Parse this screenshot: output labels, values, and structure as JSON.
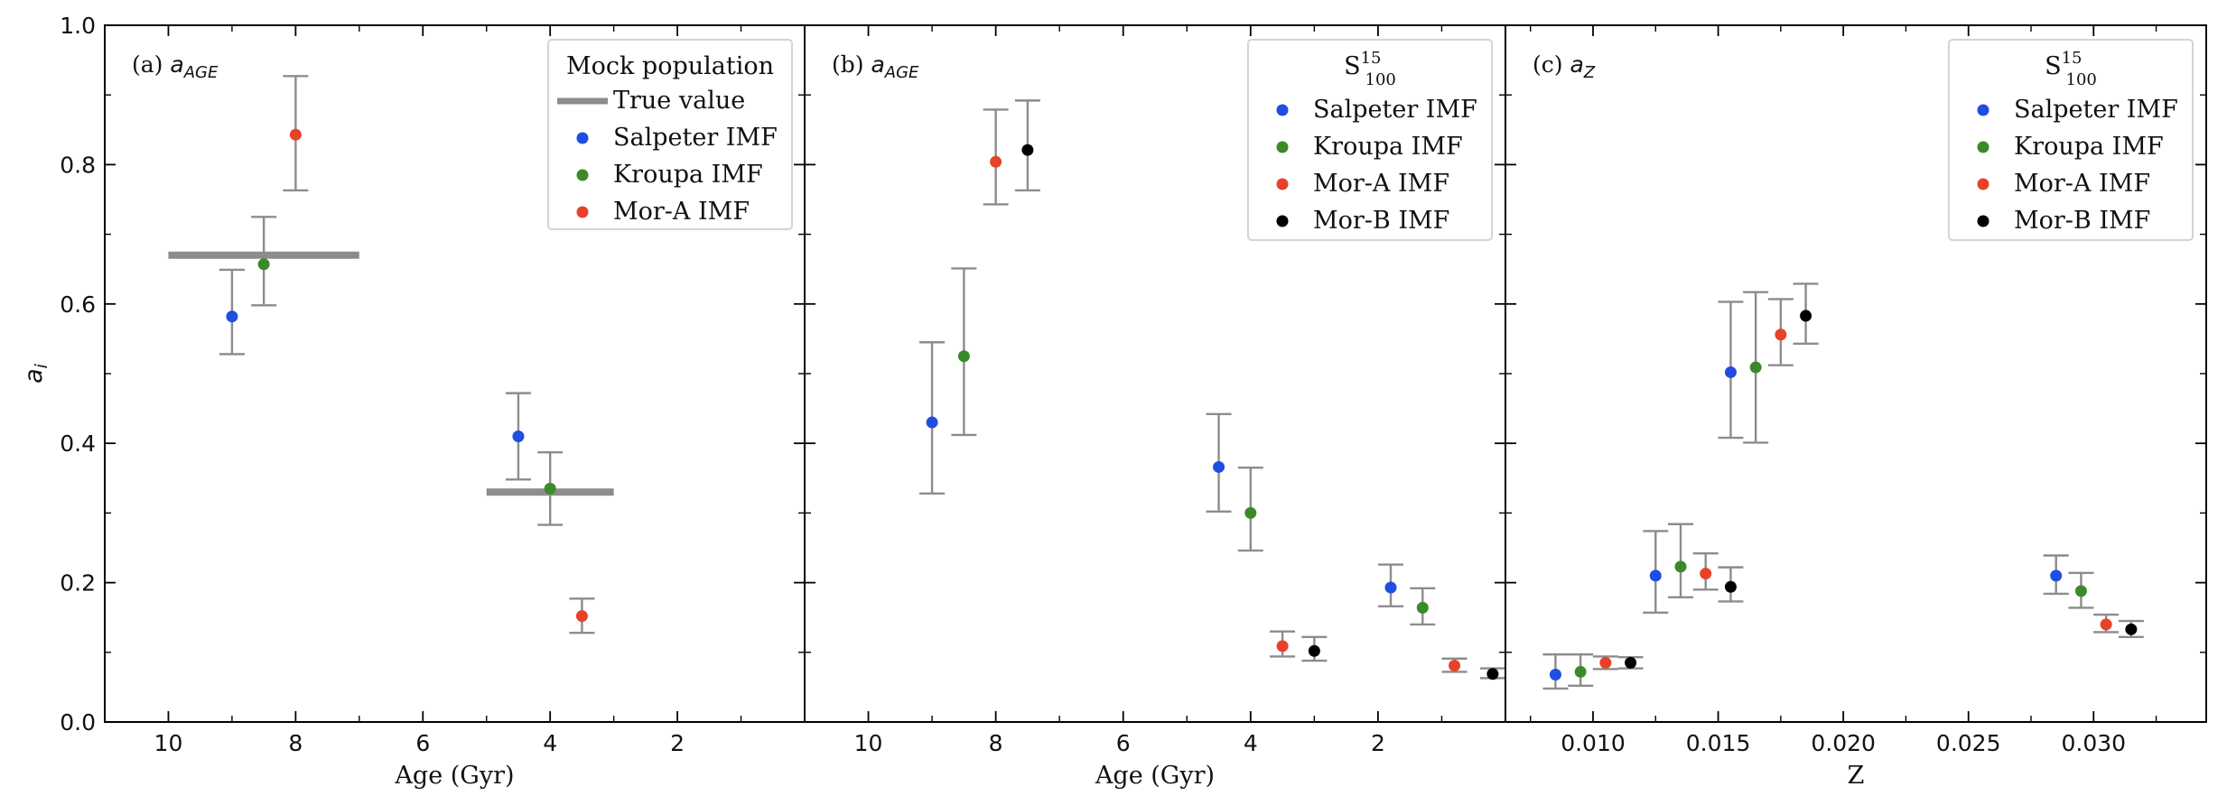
{
  "colors": {
    "salpeter": "#1f4ee0",
    "kroupa": "#3a8a2a",
    "mor_a": "#e8412a",
    "mor_b": "#000000",
    "errorbar": "#8c8c8c",
    "true_value": "#8c8c8c"
  },
  "chart_data": [
    {
      "type": "scatter",
      "panel_label": "(a)",
      "panel_symbol": "a",
      "panel_subscript": "AGE",
      "xlabel": "Age (Gyr)",
      "ylabel": "a",
      "ylabel_sub": "i",
      "xlim": [
        11,
        0
      ],
      "ylim": [
        0,
        1.0
      ],
      "xticks": [
        10,
        8,
        6,
        4,
        2
      ],
      "xtick_labels": [
        "10",
        "8",
        "6",
        "4",
        "2"
      ],
      "yticks": [
        0,
        0.2,
        0.4,
        0.6,
        0.8,
        1.0
      ],
      "ytick_labels": [
        "0.0",
        "0.2",
        "0.4",
        "0.6",
        "0.8",
        "1.0"
      ],
      "legend": {
        "title": "Mock population",
        "title_sup": "",
        "title_sub": "",
        "entries": [
          {
            "label": "True value",
            "kind": "line",
            "color_key": "true_value"
          },
          {
            "label": "Salpeter IMF",
            "kind": "dot",
            "color_key": "salpeter"
          },
          {
            "label": "Kroupa IMF",
            "kind": "dot",
            "color_key": "kroupa"
          },
          {
            "label": "Mor-A IMF",
            "kind": "dot",
            "color_key": "mor_a"
          }
        ]
      },
      "true_values": [
        {
          "x0": 10,
          "x1": 7,
          "y": 0.67
        },
        {
          "x0": 5,
          "x1": 3,
          "y": 0.33
        }
      ],
      "series": [
        {
          "name": "Salpeter IMF",
          "color_key": "salpeter",
          "points": [
            {
              "x": 9.0,
              "y": 0.582,
              "lo": 0.528,
              "hi": 0.649
            },
            {
              "x": 4.5,
              "y": 0.41,
              "lo": 0.348,
              "hi": 0.472
            }
          ]
        },
        {
          "name": "Kroupa IMF",
          "color_key": "kroupa",
          "points": [
            {
              "x": 8.5,
              "y": 0.657,
              "lo": 0.598,
              "hi": 0.725
            },
            {
              "x": 4.0,
              "y": 0.335,
              "lo": 0.283,
              "hi": 0.387
            }
          ]
        },
        {
          "name": "Mor-A IMF",
          "color_key": "mor_a",
          "points": [
            {
              "x": 8.0,
              "y": 0.843,
              "lo": 0.763,
              "hi": 0.927
            },
            {
              "x": 3.5,
              "y": 0.152,
              "lo": 0.128,
              "hi": 0.177
            }
          ]
        }
      ]
    },
    {
      "type": "scatter",
      "panel_label": "(b)",
      "panel_symbol": "a",
      "panel_subscript": "AGE",
      "xlabel": "Age (Gyr)",
      "ylabel": "",
      "ylabel_sub": "",
      "xlim": [
        11,
        0
      ],
      "ylim": [
        0,
        1.0
      ],
      "xticks": [
        10,
        8,
        6,
        4,
        2
      ],
      "xtick_labels": [
        "10",
        "8",
        "6",
        "4",
        "2"
      ],
      "yticks": [
        0,
        0.2,
        0.4,
        0.6,
        0.8,
        1.0
      ],
      "ytick_labels": [],
      "legend": {
        "title": "S",
        "title_sup": "15",
        "title_sub": "100",
        "entries": [
          {
            "label": "Salpeter IMF",
            "kind": "dot",
            "color_key": "salpeter"
          },
          {
            "label": "Kroupa IMF",
            "kind": "dot",
            "color_key": "kroupa"
          },
          {
            "label": "Mor-A IMF",
            "kind": "dot",
            "color_key": "mor_a"
          },
          {
            "label": "Mor-B IMF",
            "kind": "dot",
            "color_key": "mor_b"
          }
        ]
      },
      "true_values": [],
      "series": [
        {
          "name": "Salpeter IMF",
          "color_key": "salpeter",
          "points": [
            {
              "x": 9.0,
              "y": 0.43,
              "lo": 0.328,
              "hi": 0.545
            },
            {
              "x": 4.5,
              "y": 0.366,
              "lo": 0.302,
              "hi": 0.442
            },
            {
              "x": 1.8,
              "y": 0.193,
              "lo": 0.166,
              "hi": 0.226
            }
          ]
        },
        {
          "name": "Kroupa IMF",
          "color_key": "kroupa",
          "points": [
            {
              "x": 8.5,
              "y": 0.525,
              "lo": 0.412,
              "hi": 0.651
            },
            {
              "x": 4.0,
              "y": 0.3,
              "lo": 0.246,
              "hi": 0.365
            },
            {
              "x": 1.3,
              "y": 0.164,
              "lo": 0.14,
              "hi": 0.192
            }
          ]
        },
        {
          "name": "Mor-A IMF",
          "color_key": "mor_a",
          "points": [
            {
              "x": 8.0,
              "y": 0.804,
              "lo": 0.743,
              "hi": 0.879
            },
            {
              "x": 3.5,
              "y": 0.109,
              "lo": 0.094,
              "hi": 0.13
            },
            {
              "x": 0.8,
              "y": 0.081,
              "lo": 0.072,
              "hi": 0.091
            }
          ]
        },
        {
          "name": "Mor-B IMF",
          "color_key": "mor_b",
          "points": [
            {
              "x": 7.5,
              "y": 0.821,
              "lo": 0.763,
              "hi": 0.892
            },
            {
              "x": 3.0,
              "y": 0.102,
              "lo": 0.088,
              "hi": 0.122
            },
            {
              "x": 0.2,
              "y": 0.069,
              "lo": 0.063,
              "hi": 0.077
            }
          ]
        }
      ]
    },
    {
      "type": "scatter",
      "panel_label": "(c)",
      "panel_symbol": "a",
      "panel_subscript": "Z",
      "xlabel": "Z",
      "ylabel": "",
      "ylabel_sub": "",
      "xlim": [
        0.0065,
        0.0345
      ],
      "ylim": [
        0,
        1.0
      ],
      "xticks": [
        0.01,
        0.015,
        0.02,
        0.025,
        0.03
      ],
      "xtick_labels": [
        "0.010",
        "0.015",
        "0.020",
        "0.025",
        "0.030"
      ],
      "yticks": [
        0,
        0.2,
        0.4,
        0.6,
        0.8,
        1.0
      ],
      "ytick_labels": [],
      "legend": {
        "title": "S",
        "title_sup": "15",
        "title_sub": "100",
        "entries": [
          {
            "label": "Salpeter IMF",
            "kind": "dot",
            "color_key": "salpeter"
          },
          {
            "label": "Kroupa IMF",
            "kind": "dot",
            "color_key": "kroupa"
          },
          {
            "label": "Mor-A IMF",
            "kind": "dot",
            "color_key": "mor_a"
          },
          {
            "label": "Mor-B IMF",
            "kind": "dot",
            "color_key": "mor_b"
          }
        ]
      },
      "true_values": [],
      "series": [
        {
          "name": "Salpeter IMF",
          "color_key": "salpeter",
          "points": [
            {
              "x": 0.0085,
              "y": 0.068,
              "lo": 0.048,
              "hi": 0.097
            },
            {
              "x": 0.0125,
              "y": 0.21,
              "lo": 0.157,
              "hi": 0.274
            },
            {
              "x": 0.0155,
              "y": 0.502,
              "lo": 0.408,
              "hi": 0.603
            },
            {
              "x": 0.0285,
              "y": 0.21,
              "lo": 0.184,
              "hi": 0.239
            }
          ]
        },
        {
          "name": "Kroupa IMF",
          "color_key": "kroupa",
          "points": [
            {
              "x": 0.0095,
              "y": 0.072,
              "lo": 0.052,
              "hi": 0.097
            },
            {
              "x": 0.0135,
              "y": 0.223,
              "lo": 0.179,
              "hi": 0.284
            },
            {
              "x": 0.0165,
              "y": 0.509,
              "lo": 0.401,
              "hi": 0.617
            },
            {
              "x": 0.0295,
              "y": 0.188,
              "lo": 0.164,
              "hi": 0.214
            }
          ]
        },
        {
          "name": "Mor-A IMF",
          "color_key": "mor_a",
          "points": [
            {
              "x": 0.0105,
              "y": 0.085,
              "lo": 0.076,
              "hi": 0.094
            },
            {
              "x": 0.0145,
              "y": 0.213,
              "lo": 0.19,
              "hi": 0.242
            },
            {
              "x": 0.0175,
              "y": 0.556,
              "lo": 0.512,
              "hi": 0.607
            },
            {
              "x": 0.0305,
              "y": 0.14,
              "lo": 0.129,
              "hi": 0.154
            }
          ]
        },
        {
          "name": "Mor-B IMF",
          "color_key": "mor_b",
          "points": [
            {
              "x": 0.0115,
              "y": 0.085,
              "lo": 0.077,
              "hi": 0.093
            },
            {
              "x": 0.0155,
              "y": 0.194,
              "lo": 0.173,
              "hi": 0.222
            },
            {
              "x": 0.0185,
              "y": 0.583,
              "lo": 0.543,
              "hi": 0.629
            },
            {
              "x": 0.0315,
              "y": 0.133,
              "lo": 0.122,
              "hi": 0.145
            }
          ]
        }
      ]
    }
  ]
}
